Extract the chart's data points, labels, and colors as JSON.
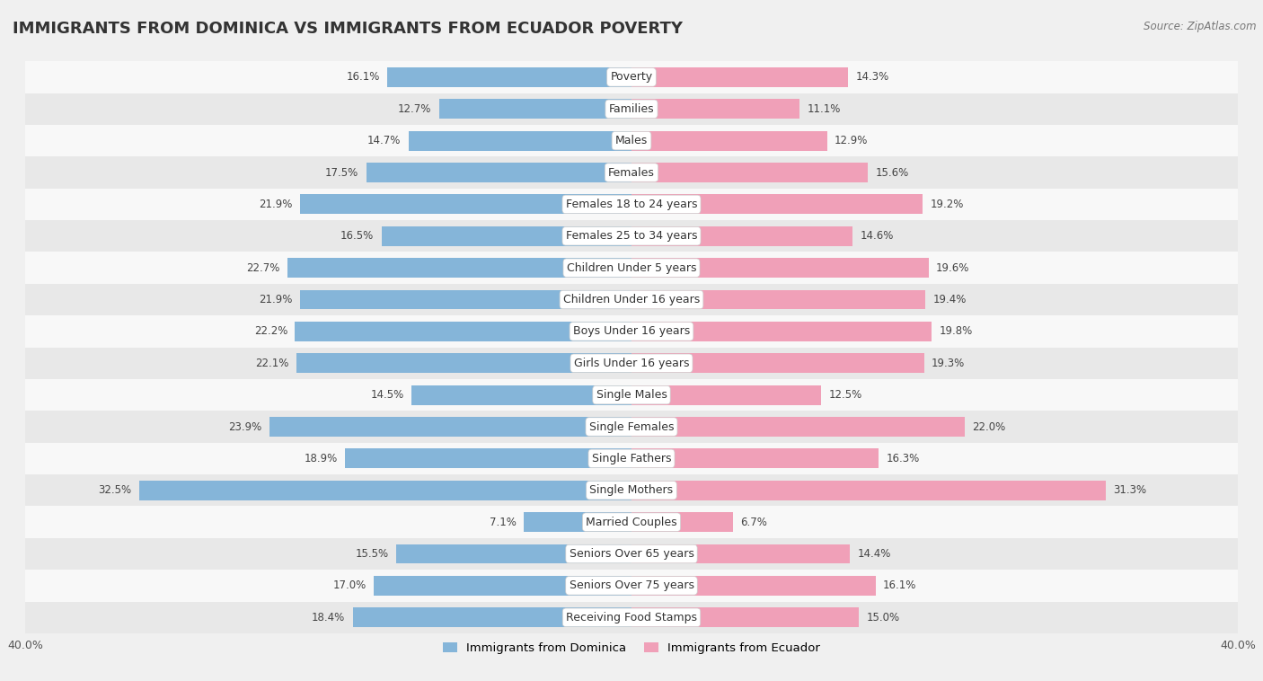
{
  "title": "IMMIGRANTS FROM DOMINICA VS IMMIGRANTS FROM ECUADOR POVERTY",
  "source": "Source: ZipAtlas.com",
  "categories": [
    "Poverty",
    "Families",
    "Males",
    "Females",
    "Females 18 to 24 years",
    "Females 25 to 34 years",
    "Children Under 5 years",
    "Children Under 16 years",
    "Boys Under 16 years",
    "Girls Under 16 years",
    "Single Males",
    "Single Females",
    "Single Fathers",
    "Single Mothers",
    "Married Couples",
    "Seniors Over 65 years",
    "Seniors Over 75 years",
    "Receiving Food Stamps"
  ],
  "dominica_values": [
    16.1,
    12.7,
    14.7,
    17.5,
    21.9,
    16.5,
    22.7,
    21.9,
    22.2,
    22.1,
    14.5,
    23.9,
    18.9,
    32.5,
    7.1,
    15.5,
    17.0,
    18.4
  ],
  "ecuador_values": [
    14.3,
    11.1,
    12.9,
    15.6,
    19.2,
    14.6,
    19.6,
    19.4,
    19.8,
    19.3,
    12.5,
    22.0,
    16.3,
    31.3,
    6.7,
    14.4,
    16.1,
    15.0
  ],
  "dominica_color": "#85b5d9",
  "ecuador_color": "#f0a0b8",
  "dominica_label": "Immigrants from Dominica",
  "ecuador_label": "Immigrants from Ecuador",
  "background_color": "#f0f0f0",
  "row_bg_light": "#f8f8f8",
  "row_bg_dark": "#e8e8e8",
  "xlim": 40.0,
  "bar_height": 0.62,
  "title_fontsize": 13,
  "label_fontsize": 9,
  "value_fontsize": 8.5
}
